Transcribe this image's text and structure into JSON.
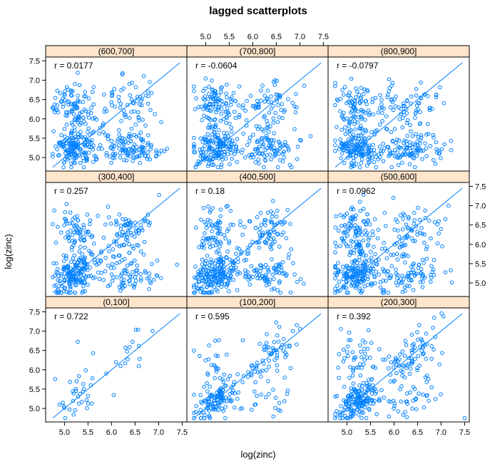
{
  "chart_data": {
    "type": "scatter",
    "title": "lagged scatterplots",
    "xlabel": "log(zinc)",
    "ylabel": "log(zinc)",
    "xlim": [
      4.6,
      7.6
    ],
    "ylim": [
      4.65,
      7.6
    ],
    "xticks": [
      "5.0",
      "5.5",
      "6.0",
      "6.5",
      "7.0",
      "7.5"
    ],
    "yticks": [
      "5.0",
      "5.5",
      "6.0",
      "6.5",
      "7.0",
      "7.5"
    ],
    "strip_color": "#ffe5cc",
    "point_color": "#0080ff",
    "reference_line": "y = x",
    "panels": [
      {
        "label": "(0,100]",
        "r_text": "r = 0.722",
        "r": 0.722,
        "n_points": 50
      },
      {
        "label": "(100,200]",
        "r_text": "r = 0.595",
        "r": 0.595,
        "n_points": 230
      },
      {
        "label": "(200,300]",
        "r_text": "r = 0.392",
        "r": 0.392,
        "n_points": 330
      },
      {
        "label": "(300,400]",
        "r_text": "r = 0.257",
        "r": 0.257,
        "n_points": 400
      },
      {
        "label": "(400,500]",
        "r_text": "r = 0.18",
        "r": 0.18,
        "n_points": 430
      },
      {
        "label": "(500,600]",
        "r_text": "r = 0.0962",
        "r": 0.0962,
        "n_points": 440
      },
      {
        "label": "(600,700]",
        "r_text": "r = 0.0177",
        "r": 0.0177,
        "n_points": 440
      },
      {
        "label": "(700,800]",
        "r_text": "r = -0.0604",
        "r": -0.0604,
        "n_points": 440
      },
      {
        "label": "(800,900]",
        "r_text": "r = -0.0797",
        "r": -0.0797,
        "n_points": 440
      }
    ]
  }
}
